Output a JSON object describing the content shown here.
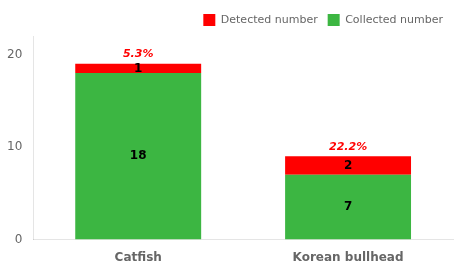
{
  "chart_data": {
    "type": "bar",
    "stacked": true,
    "categories": [
      "Catfish",
      "Korean bullhead"
    ],
    "series": [
      {
        "name": "Collected number",
        "color": "#3CB642",
        "values": [
          18,
          7
        ]
      },
      {
        "name": "Detected number",
        "color": "#FF0000",
        "values": [
          1,
          2
        ]
      }
    ],
    "data_labels": true,
    "annotations": [
      {
        "category": "Catfish",
        "text": "5.3%"
      },
      {
        "category": "Korean bullhead",
        "text": "22.2%"
      }
    ],
    "ylim": [
      0,
      22
    ],
    "yticks": [
      0,
      10,
      20
    ],
    "grid": false,
    "legend": "upper right"
  }
}
